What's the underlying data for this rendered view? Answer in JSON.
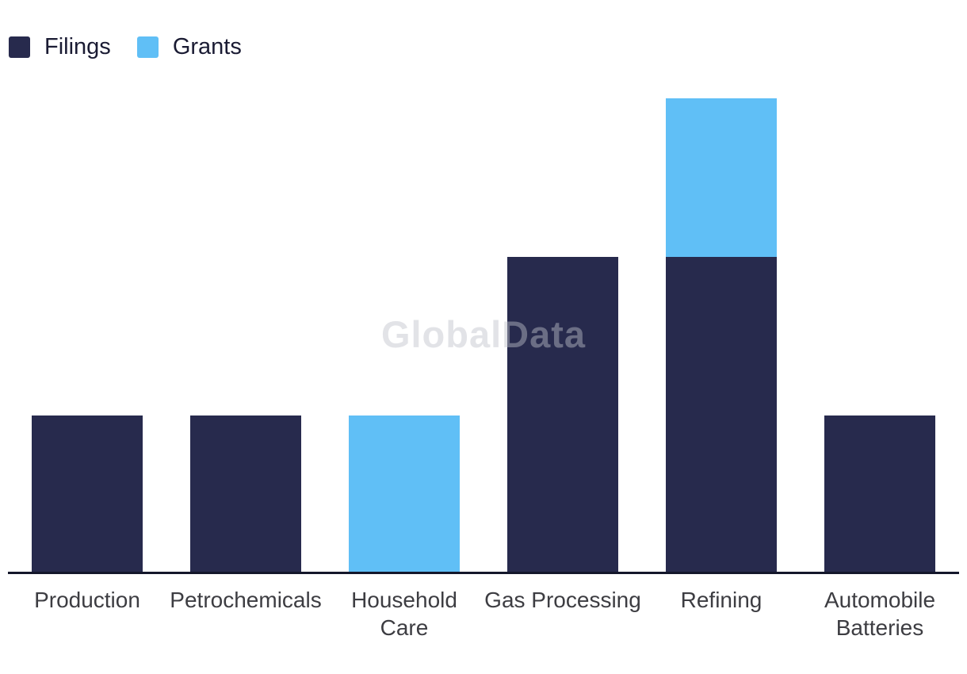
{
  "legend": {
    "position": "top-left",
    "items": [
      {
        "label": "Filings",
        "color": "#272A4D"
      },
      {
        "label": "Grants",
        "color": "#60BFF6"
      }
    ]
  },
  "watermark": {
    "text": "GlobalData"
  },
  "colors": {
    "background": "#FFFFFF",
    "axis_line": "#14172B",
    "category_label": "#3D3D42",
    "legend_label": "#1A1B33"
  },
  "chart_data": {
    "type": "bar",
    "stacked": true,
    "orientation": "vertical",
    "title": "",
    "xlabel": "",
    "ylabel": "",
    "grid": false,
    "y_axis_visible": false,
    "legend_position": "top-left",
    "categories": [
      "Production",
      "Petrochemicals",
      "Household Care",
      "Gas Processing",
      "Refining",
      "Automobile Batteries"
    ],
    "category_label_lines": [
      [
        "Production"
      ],
      [
        "Petrochemicals"
      ],
      [
        "Household",
        "Care"
      ],
      [
        "Gas Processing"
      ],
      [
        "Refining"
      ],
      [
        "Automobile",
        "Batteries"
      ]
    ],
    "series": [
      {
        "name": "Filings",
        "color": "#272A4D",
        "values": [
          1,
          1,
          0,
          2,
          2,
          1
        ]
      },
      {
        "name": "Grants",
        "color": "#60BFF6",
        "values": [
          0,
          0,
          1,
          0,
          1,
          0
        ]
      }
    ],
    "ylim": [
      0,
      3
    ]
  }
}
